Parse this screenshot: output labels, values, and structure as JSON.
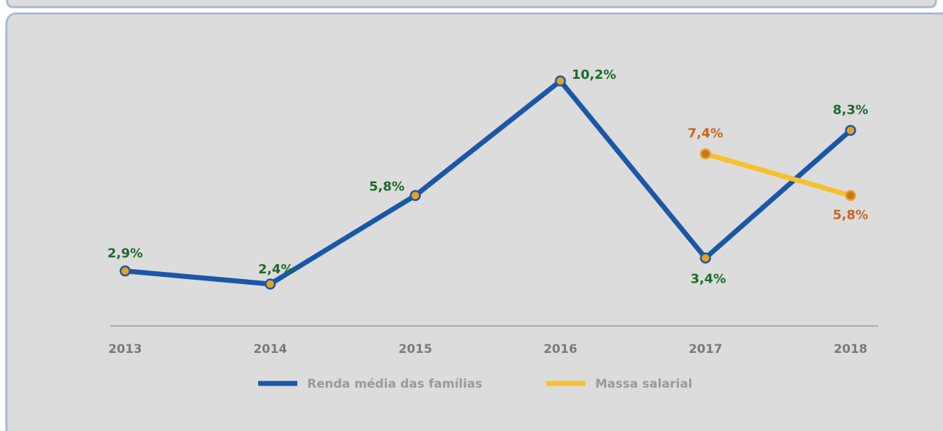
{
  "chart_data": {
    "type": "line",
    "categories": [
      "2013",
      "2014",
      "2015",
      "2016",
      "2017",
      "2018"
    ],
    "series": [
      {
        "name": "Renda média das famílias",
        "color": "#1b57a8",
        "marker_color": "#eaa21e",
        "label_color": "#1e6a2c",
        "values": [
          2.9,
          2.4,
          5.8,
          10.2,
          3.4,
          8.3
        ],
        "value_labels": [
          "2,9%",
          "2,4%",
          "5,8%",
          "10,2%",
          "3,4%",
          "8,3%"
        ]
      },
      {
        "name": "Massa salarial",
        "color": "#f6c12c",
        "marker_color": "#c8761f",
        "label_color": "#c8661f",
        "values": [
          null,
          null,
          null,
          null,
          7.4,
          5.8
        ],
        "value_labels": [
          null,
          null,
          null,
          null,
          "7,4%",
          "5,8%"
        ]
      }
    ]
  }
}
